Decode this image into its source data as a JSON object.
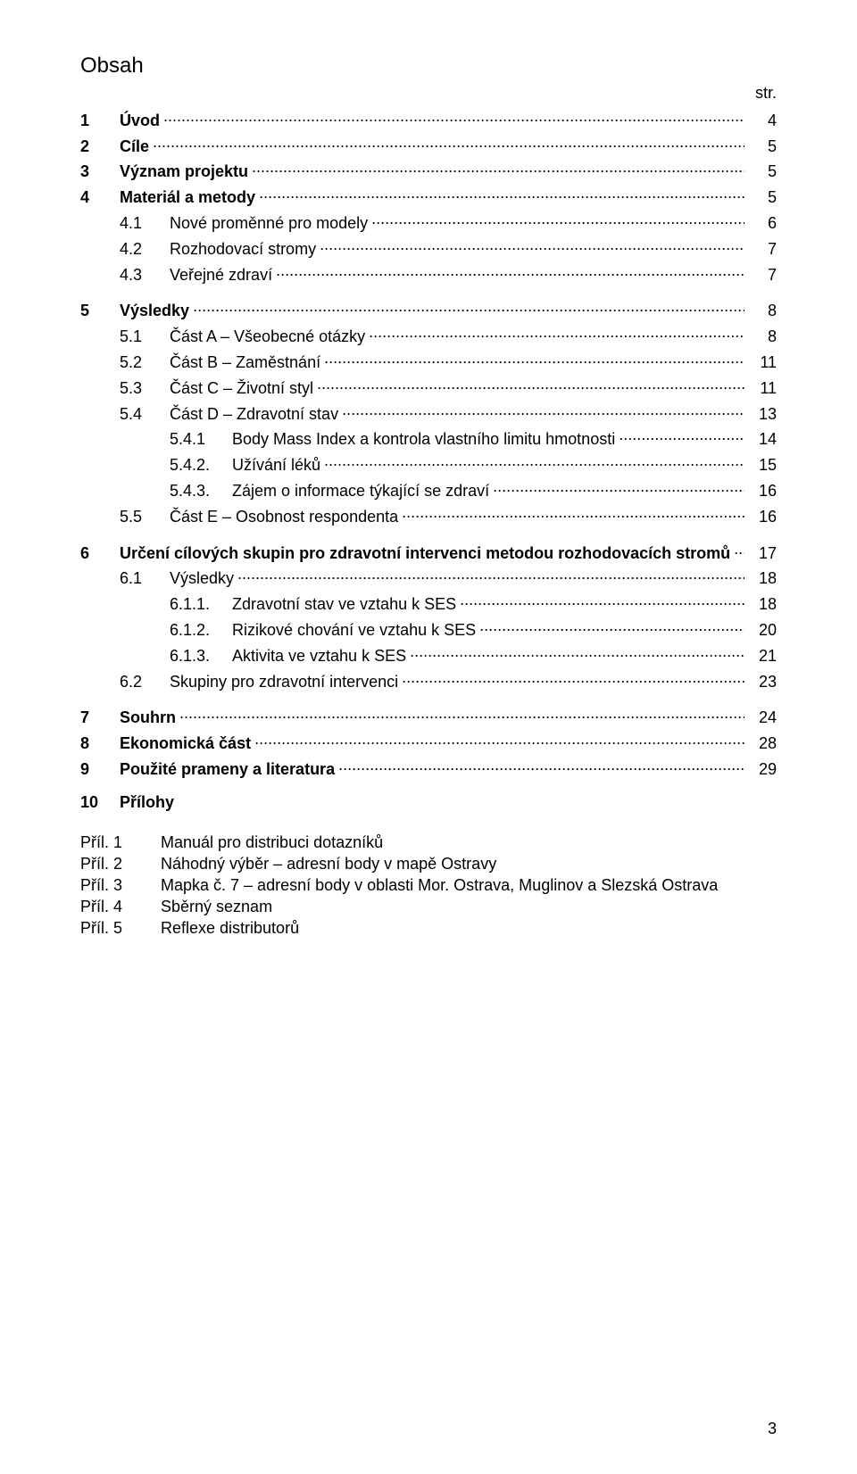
{
  "page": {
    "title": "Obsah",
    "str_label": "str.",
    "page_number": "3"
  },
  "toc": [
    {
      "level": 0,
      "num": "1",
      "label": "Úvod",
      "page": "4",
      "bold": true,
      "spaced": false
    },
    {
      "level": 0,
      "num": "2",
      "label": "Cíle",
      "page": "5",
      "bold": true,
      "spaced": false
    },
    {
      "level": 0,
      "num": "3",
      "label": "Význam projektu",
      "page": "5",
      "bold": true,
      "spaced": false
    },
    {
      "level": 0,
      "num": "4",
      "label": "Materiál a metody",
      "page": "5",
      "bold": true,
      "spaced": false
    },
    {
      "level": 1,
      "num": "4.1",
      "label": "Nové proměnné pro modely",
      "page": "6",
      "bold": false,
      "spaced": false
    },
    {
      "level": 1,
      "num": "4.2",
      "label": "Rozhodovací stromy",
      "page": "7",
      "bold": false,
      "spaced": false
    },
    {
      "level": 1,
      "num": "4.3",
      "label": "Veřejné zdraví",
      "page": "7",
      "bold": false,
      "spaced": false
    },
    {
      "level": 0,
      "num": "5",
      "label": "Výsledky",
      "page": "8",
      "bold": true,
      "spaced": true
    },
    {
      "level": 1,
      "num": "5.1",
      "label": "Část A – Všeobecné otázky",
      "page": "8",
      "bold": false,
      "spaced": false
    },
    {
      "level": 1,
      "num": "5.2",
      "label": "Část B – Zaměstnání",
      "page": "11",
      "bold": false,
      "spaced": false
    },
    {
      "level": 1,
      "num": "5.3",
      "label": "Část C – Životní styl",
      "page": "11",
      "bold": false,
      "spaced": false
    },
    {
      "level": 1,
      "num": "5.4",
      "label": "Část D – Zdravotní stav",
      "page": "13",
      "bold": false,
      "spaced": false
    },
    {
      "level": 2,
      "num": "5.4.1",
      "label": "Body Mass Index a kontrola vlastního limitu hmotnosti",
      "page": "14",
      "bold": false,
      "spaced": false
    },
    {
      "level": 2,
      "num": "5.4.2.",
      "label": "Užívání léků",
      "page": "15",
      "bold": false,
      "spaced": false
    },
    {
      "level": 2,
      "num": "5.4.3.",
      "label": "Zájem o informace týkající se zdraví",
      "page": "16",
      "bold": false,
      "spaced": false
    },
    {
      "level": 1,
      "num": "5.5",
      "label": "Část E – Osobnost respondenta",
      "page": "16",
      "bold": false,
      "spaced": false
    },
    {
      "level": 0,
      "num": "6",
      "label": "Určení cílových skupin pro zdravotní intervenci metodou rozhodovacích stromů",
      "page": "17",
      "bold": true,
      "spaced": true
    },
    {
      "level": 1,
      "num": "6.1",
      "label": "Výsledky",
      "page": "18",
      "bold": false,
      "spaced": false
    },
    {
      "level": 2,
      "num": "6.1.1.",
      "label": "Zdravotní stav ve vztahu k SES",
      "page": "18",
      "bold": false,
      "spaced": false
    },
    {
      "level": 2,
      "num": "6.1.2.",
      "label": "Rizikové chování ve vztahu k SES",
      "page": "20",
      "bold": false,
      "spaced": false
    },
    {
      "level": 2,
      "num": "6.1.3.",
      "label": "Aktivita ve vztahu k SES",
      "page": "21",
      "bold": false,
      "spaced": false
    },
    {
      "level": 1,
      "num": "6.2",
      "label": "Skupiny pro zdravotní intervenci",
      "page": "23",
      "bold": false,
      "spaced": false
    },
    {
      "level": 0,
      "num": "7",
      "label": "Souhrn",
      "page": "24",
      "bold": true,
      "spaced": true
    },
    {
      "level": 0,
      "num": "8",
      "label": "Ekonomická část",
      "page": "28",
      "bold": true,
      "spaced": false
    },
    {
      "level": 0,
      "num": "9",
      "label": "Použité prameny a  literatura",
      "page": "29",
      "bold": true,
      "spaced": false
    },
    {
      "level": 0,
      "num": "10",
      "label": "Přílohy",
      "page": "",
      "bold": true,
      "spaced": true,
      "noleader": true
    }
  ],
  "attachments": [
    {
      "key": "Příl. 1",
      "val": "Manuál pro distribuci dotazníků"
    },
    {
      "key": "Příl. 2",
      "val": "Náhodný výběr – adresní body v mapě Ostravy"
    },
    {
      "key": "Příl. 3",
      "val": "Mapka č. 7 – adresní body v oblasti Mor. Ostrava, Muglinov a Slezská Ostrava"
    },
    {
      "key": "Příl. 4",
      "val": "Sběrný seznam"
    },
    {
      "key": "Příl. 5",
      "val": "Reflexe distributorů"
    }
  ],
  "style": {
    "font_family": "Arial",
    "title_fontsize_pt": 18,
    "body_fontsize_pt": 14,
    "text_color": "#000000",
    "background_color": "#ffffff"
  }
}
